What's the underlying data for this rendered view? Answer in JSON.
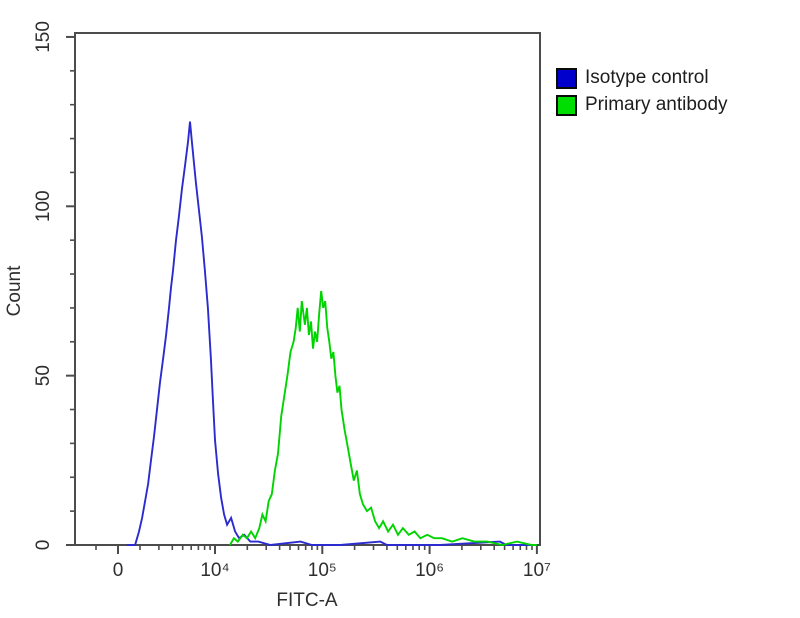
{
  "figure": {
    "background_color": "#ffffff"
  },
  "legend": {
    "items": [
      {
        "label": "Isotype control",
        "color": "#0000cc"
      },
      {
        "label": "Primary antibody",
        "color": "#00dd00"
      }
    ]
  },
  "chart_data": {
    "type": "line",
    "subtype": "flow-cytometry-overlay-histogram",
    "title": "",
    "xlabel": "FITC-A",
    "ylabel": "Count",
    "x_scale": "biexponential-log",
    "axis_color": "#4c4c4c",
    "grid": false,
    "legend_position": "upper-right-outside",
    "x_axis": {
      "major_tick_values": [
        0,
        10000,
        100000,
        1000000,
        10000000
      ],
      "major_tick_labels": [
        "0",
        "10⁴",
        "10⁵",
        "10⁶",
        "10⁷"
      ],
      "range_note": "biexponential: quasi-linear around 0, log above ~2e3 up to 1e7"
    },
    "y_axis": {
      "major_tick_values": [
        0,
        50,
        100,
        150
      ],
      "major_tick_labels": [
        "0",
        "50",
        "100",
        "150"
      ],
      "minor_step": 10,
      "range": [
        0,
        151
      ]
    },
    "series": [
      {
        "name": "Isotype control",
        "color": "#2b2bcf",
        "peak": {
          "x": 5850,
          "count": 125
        },
        "points": [
          [
            800,
            0
          ],
          [
            1550,
            0
          ],
          [
            1910,
            4
          ],
          [
            2090,
            8
          ],
          [
            2230,
            13
          ],
          [
            2380,
            18
          ],
          [
            2530,
            25
          ],
          [
            2700,
            32
          ],
          [
            2880,
            40
          ],
          [
            3070,
            48
          ],
          [
            3280,
            55
          ],
          [
            3500,
            62
          ],
          [
            3730,
            70
          ],
          [
            3890,
            76
          ],
          [
            4060,
            81
          ],
          [
            4330,
            90
          ],
          [
            4610,
            97
          ],
          [
            4920,
            105
          ],
          [
            5250,
            112
          ],
          [
            5600,
            119
          ],
          [
            5850,
            125
          ],
          [
            6090,
            119
          ],
          [
            6360,
            113
          ],
          [
            6640,
            107
          ],
          [
            7080,
            99
          ],
          [
            7550,
            91
          ],
          [
            8050,
            81
          ],
          [
            8590,
            70
          ],
          [
            9160,
            55
          ],
          [
            9560,
            43
          ],
          [
            10000,
            31
          ],
          [
            10690,
            21
          ],
          [
            11400,
            14
          ],
          [
            12160,
            9
          ],
          [
            12970,
            6
          ],
          [
            14130,
            8
          ],
          [
            15390,
            4
          ],
          [
            16770,
            2
          ],
          [
            18710,
            3
          ],
          [
            21340,
            1
          ],
          [
            25330,
            1
          ],
          [
            32890,
            0
          ],
          [
            62600,
            1
          ],
          [
            80000,
            0
          ],
          [
            147000,
            0
          ],
          [
            347000,
            1
          ],
          [
            400000,
            0
          ],
          [
            1253000,
            0
          ],
          [
            4525000,
            1
          ],
          [
            5200000,
            0
          ],
          [
            10000000,
            0
          ]
        ]
      },
      {
        "name": "Primary antibody",
        "color": "#00d400",
        "peak": {
          "x": 97600,
          "count": 75
        },
        "points": [
          [
            13800,
            0
          ],
          [
            15000,
            2
          ],
          [
            16300,
            1
          ],
          [
            18170,
            3
          ],
          [
            19850,
            2
          ],
          [
            21690,
            4
          ],
          [
            23700,
            2
          ],
          [
            25890,
            5
          ],
          [
            27680,
            9
          ],
          [
            29600,
            7
          ],
          [
            31650,
            13
          ],
          [
            33840,
            15
          ],
          [
            36180,
            22
          ],
          [
            38680,
            27
          ],
          [
            41360,
            38
          ],
          [
            44230,
            44
          ],
          [
            47290,
            50
          ],
          [
            50560,
            57
          ],
          [
            54060,
            60
          ],
          [
            56500,
            64
          ],
          [
            59000,
            70
          ],
          [
            61650,
            63
          ],
          [
            64430,
            72
          ],
          [
            68800,
            65
          ],
          [
            71870,
            70
          ],
          [
            75080,
            62
          ],
          [
            78430,
            66
          ],
          [
            81930,
            58
          ],
          [
            85590,
            63
          ],
          [
            89410,
            60
          ],
          [
            93400,
            68
          ],
          [
            97570,
            75
          ],
          [
            101930,
            70
          ],
          [
            106480,
            72
          ],
          [
            111230,
            64
          ],
          [
            116200,
            60
          ],
          [
            121380,
            55
          ],
          [
            126800,
            57
          ],
          [
            132460,
            50
          ],
          [
            138380,
            45
          ],
          [
            144550,
            47
          ],
          [
            151000,
            40
          ],
          [
            161300,
            34
          ],
          [
            172300,
            29
          ],
          [
            184000,
            24
          ],
          [
            196600,
            19
          ],
          [
            210000,
            22
          ],
          [
            224300,
            15
          ],
          [
            239600,
            12
          ],
          [
            261200,
            10
          ],
          [
            284700,
            11
          ],
          [
            310300,
            7
          ],
          [
            338200,
            5
          ],
          [
            368700,
            7
          ],
          [
            410100,
            4
          ],
          [
            456100,
            6
          ],
          [
            507300,
            3
          ],
          [
            564200,
            5
          ],
          [
            639500,
            3
          ],
          [
            724900,
            4
          ],
          [
            821600,
            2
          ],
          [
            951000,
            3
          ],
          [
            1101000,
            2
          ],
          [
            1306000,
            2
          ],
          [
            1624000,
            1
          ],
          [
            2020000,
            2
          ],
          [
            2612000,
            1
          ],
          [
            3447000,
            1
          ],
          [
            4745000,
            0
          ],
          [
            6531000,
            1
          ],
          [
            8989000,
            0
          ],
          [
            10000000,
            0
          ]
        ]
      }
    ]
  }
}
